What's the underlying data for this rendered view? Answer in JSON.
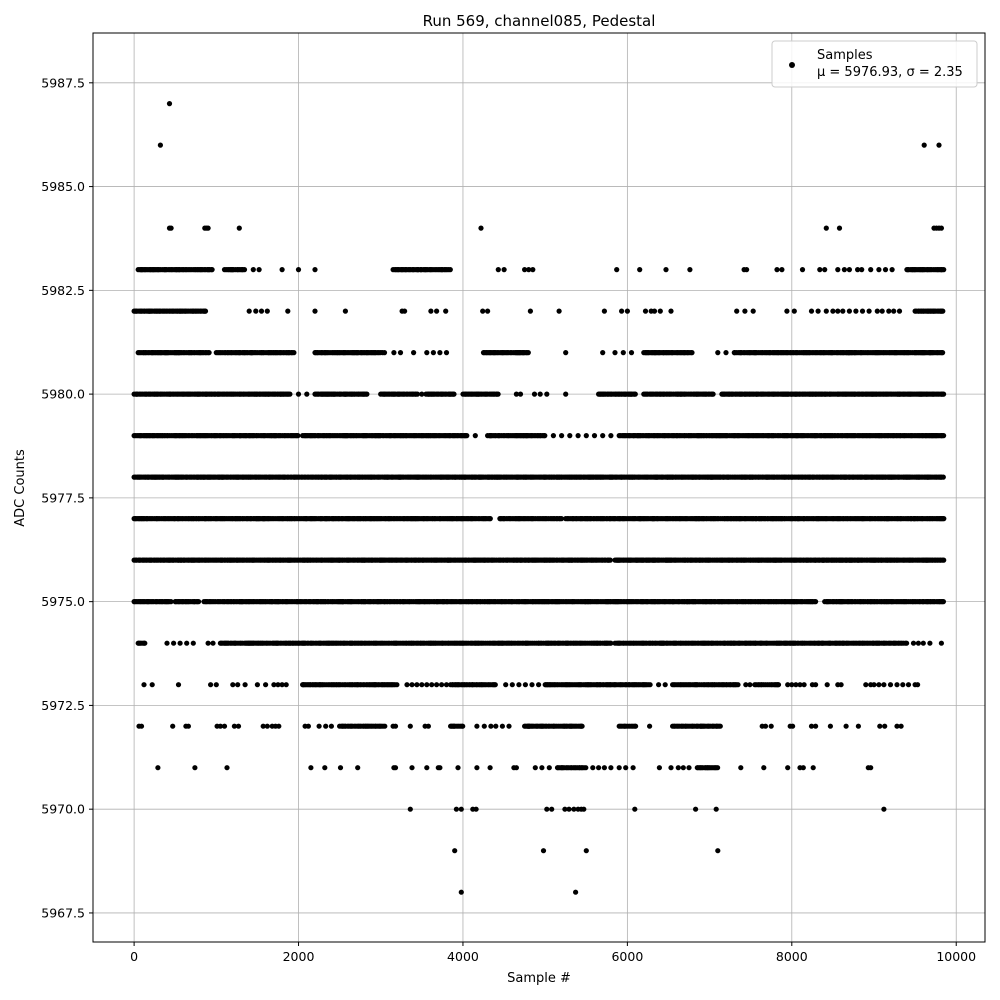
{
  "chart_data": {
    "type": "scatter",
    "title": "Run 569, channel085, Pedestal",
    "xlabel": "Sample #",
    "ylabel": "ADC Counts",
    "xlim": [
      -500,
      10350
    ],
    "ylim": [
      5966.8,
      5988.7
    ],
    "xticks": [
      0,
      2000,
      4000,
      6000,
      8000,
      10000
    ],
    "yticks": [
      5967.5,
      5970.0,
      5972.5,
      5975.0,
      5977.5,
      5980.0,
      5982.5,
      5985.0,
      5987.5
    ],
    "xtick_labels": [
      "0",
      "2000",
      "4000",
      "6000",
      "8000",
      "10000"
    ],
    "ytick_labels": [
      "5967.5",
      "5970.0",
      "5972.5",
      "5975.0",
      "5977.5",
      "5980.0",
      "5982.5",
      "5985.0",
      "5987.5"
    ],
    "grid": true,
    "legend_position": "top-right",
    "series": [
      {
        "name": "Samples",
        "stats_label": "μ = 5976.93, σ = 2.35",
        "color": "#000000",
        "marker": "circle",
        "x_range": [
          0,
          9850
        ],
        "levels": [
          {
            "y": 5987,
            "x": [
              430
            ]
          },
          {
            "y": 5986,
            "x": [
              320,
              9610,
              9790
            ]
          },
          {
            "y": 5984,
            "x": [
              430,
              450,
              860,
              880,
              900,
              1280,
              4220,
              8420,
              8580,
              9730,
              9760,
              9790,
              9820
            ]
          },
          {
            "y": 5983,
            "x_dense": [
              [
                50,
                950
              ],
              [
                1100,
                1350
              ],
              [
                3150,
                3850
              ],
              [
                9400,
                9850
              ]
            ],
            "x": [
              1450,
              1520,
              1800,
              2000,
              2200,
              4430,
              4500,
              4750,
              4800,
              4850,
              5870,
              6150,
              6470,
              6760,
              7420,
              7450,
              7820,
              7880,
              8130,
              8340,
              8400,
              8560,
              8640,
              8700,
              8800,
              8850,
              8960,
              9060,
              9140,
              9220
            ]
          },
          {
            "y": 5982,
            "x_dense": [
              [
                0,
                880
              ],
              [
                9500,
                9850
              ]
            ],
            "x": [
              1400,
              1480,
              1550,
              1620,
              1870,
              2200,
              2570,
              3260,
              3290,
              3610,
              3680,
              3790,
              4240,
              4300,
              4820,
              5170,
              5720,
              5930,
              6000,
              6220,
              6290,
              6330,
              6400,
              6530,
              7330,
              7430,
              7530,
              7940,
              8030,
              8240,
              8320,
              8420,
              8500,
              8560,
              8620,
              8700,
              8780,
              8860,
              8940,
              9040,
              9100,
              9180,
              9240,
              9310
            ]
          },
          {
            "y": 5981,
            "x_dense": [
              [
                50,
                920
              ],
              [
                1000,
                1950
              ],
              [
                2200,
                3050
              ],
              [
                4250,
                4800
              ],
              [
                6200,
                6800
              ],
              [
                7300,
                9850
              ]
            ],
            "x": [
              3160,
              3240,
              3400,
              3560,
              3640,
              3720,
              3800,
              5250,
              5700,
              5850,
              5950,
              6050,
              7100,
              7200
            ]
          },
          {
            "y": 5980,
            "x_dense": [
              [
                0,
                1900
              ],
              [
                2200,
                2850
              ],
              [
                3000,
                3450
              ],
              [
                3550,
                3900
              ],
              [
                4000,
                4450
              ],
              [
                5650,
                6100
              ],
              [
                6200,
                7050
              ],
              [
                7150,
                9850
              ]
            ],
            "x": [
              2000,
              2100,
              3500,
              4650,
              4700,
              4870,
              4940,
              5020,
              5250
            ]
          },
          {
            "y": 5979,
            "x_dense": [
              [
                0,
                2000
              ],
              [
                2050,
                4050
              ],
              [
                4300,
                5000
              ],
              [
                5900,
                9850
              ]
            ],
            "x": [
              4150,
              5100,
              5200,
              5300,
              5400,
              5500,
              5600,
              5700,
              5800
            ]
          },
          {
            "y": 5978,
            "x_dense": [
              [
                0,
                9850
              ]
            ],
            "x": []
          },
          {
            "y": 5977,
            "x_dense": [
              [
                0,
                4350
              ],
              [
                4450,
                5200
              ],
              [
                5250,
                9850
              ]
            ],
            "x": []
          },
          {
            "y": 5976,
            "x_dense": [
              [
                0,
                5800
              ],
              [
                5850,
                9850
              ]
            ],
            "x": []
          },
          {
            "y": 5975,
            "x_dense": [
              [
                0,
                450
              ],
              [
                500,
                800
              ],
              [
                850,
                8300
              ],
              [
                8400,
                9850
              ]
            ],
            "x": []
          },
          {
            "y": 5974,
            "x_dense": [
              [
                50,
                150
              ],
              [
                1050,
                5800
              ],
              [
                5850,
                9400
              ]
            ],
            "x": [
              400,
              480,
              560,
              640,
              720,
              900,
              960,
              9480,
              9540,
              9600,
              9680,
              9820
            ]
          },
          {
            "y": 5973,
            "x_dense": [
              [
                2050,
                3200
              ],
              [
                3850,
                4400
              ],
              [
                5000,
                6300
              ],
              [
                6550,
                7350
              ],
              [
                7550,
                7850
              ]
            ],
            "x": [
              120,
              220,
              540,
              930,
              1000,
              1200,
              1260,
              1350,
              1500,
              1600,
              1700,
              1750,
              1800,
              1850,
              3320,
              3380,
              3440,
              3500,
              3560,
              3620,
              3680,
              3740,
              3800,
              4520,
              4600,
              4680,
              4760,
              4840,
              4920,
              6380,
              6460,
              7440,
              7490,
              7950,
              8000,
              8050,
              8100,
              8150,
              8250,
              8290,
              8430,
              8560,
              8600,
              8900,
              8960,
              9000,
              9060,
              9120,
              9200,
              9280,
              9350,
              9420,
              9500,
              9530
            ]
          },
          {
            "y": 5972,
            "x_dense": [
              [
                2500,
                3050
              ],
              [
                3850,
                4000
              ],
              [
                4750,
                5450
              ],
              [
                5900,
                6100
              ],
              [
                6550,
                7150
              ]
            ],
            "x": [
              60,
              90,
              470,
              630,
              660,
              1010,
              1050,
              1100,
              1220,
              1270,
              1570,
              1620,
              1680,
              1720,
              1760,
              2080,
              2120,
              2250,
              2330,
              2400,
              3150,
              3180,
              3360,
              3540,
              3580,
              4170,
              4260,
              4340,
              4400,
              4480,
              4560,
              6270,
              7640,
              7680,
              7750,
              7980,
              8010,
              8240,
              8290,
              8470,
              8660,
              8810,
              9070,
              9130,
              9280,
              9330
            ]
          },
          {
            "y": 5971,
            "x_dense": [
              [
                5150,
                5500
              ],
              [
                6850,
                7100
              ]
            ],
            "x": [
              290,
              740,
              1130,
              2150,
              2320,
              2510,
              2720,
              3160,
              3180,
              3380,
              3560,
              3700,
              3720,
              3940,
              4170,
              4330,
              4620,
              4650,
              4880,
              4960,
              5050,
              5580,
              5650,
              5720,
              5800,
              5900,
              5980,
              6070,
              6390,
              6530,
              6620,
              6680,
              6750,
              7380,
              7660,
              7950,
              8100,
              8140,
              8260,
              8930,
              8960
            ]
          },
          {
            "y": 5970,
            "x": [
              3360,
              3920,
              3980,
              4120,
              4160,
              5020,
              5080,
              5240,
              5290,
              5350,
              5400,
              5440,
              5470,
              6090,
              6830,
              7080,
              9120
            ]
          },
          {
            "y": 5969,
            "x": [
              3900,
              4980,
              5500,
              7100
            ]
          },
          {
            "y": 5968,
            "x": [
              3980,
              5370
            ]
          }
        ]
      }
    ]
  }
}
